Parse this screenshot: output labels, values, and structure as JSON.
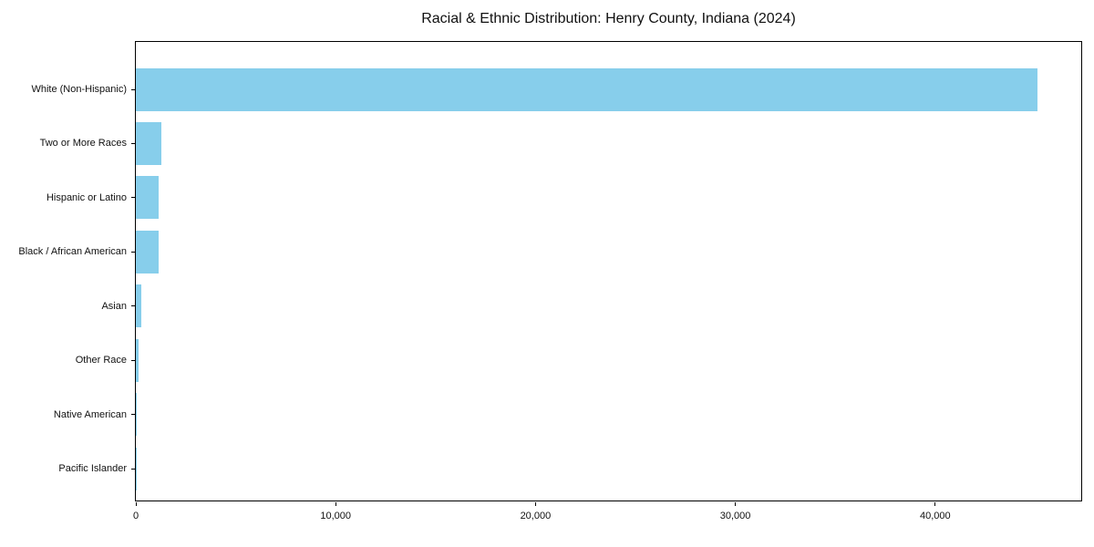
{
  "colors": {
    "bar": "#87CEEB",
    "spine": "#000000",
    "text": "#111111",
    "background": "#ffffff"
  },
  "chart_data": {
    "type": "bar",
    "orientation": "horizontal",
    "title": "Racial & Ethnic Distribution: Henry County, Indiana (2024)",
    "categories": [
      "White (Non-Hispanic)",
      "Two or More Races",
      "Hispanic or Latino",
      "Black / African American",
      "Asian",
      "Other Race",
      "Native American",
      "Pacific Islander"
    ],
    "values": [
      45100,
      1280,
      1160,
      1150,
      260,
      140,
      50,
      10
    ],
    "xlabel": "",
    "ylabel": "",
    "xlim": [
      0,
      47400
    ],
    "xticks": [
      0,
      10000,
      20000,
      30000,
      40000
    ],
    "xtick_labels": [
      "0",
      "10,000",
      "20,000",
      "30,000",
      "40,000"
    ],
    "grid": false,
    "legend": null,
    "bar_color": "#87CEEB"
  }
}
